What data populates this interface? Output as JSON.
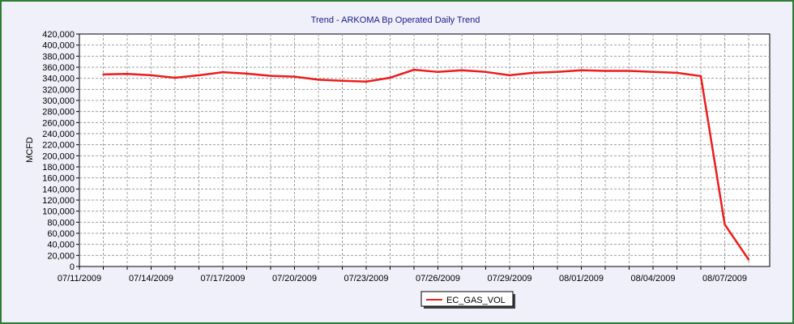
{
  "chart_data": {
    "type": "line",
    "title": "Trend - ARKOMA  Bp Operated Daily Trend",
    "xlabel": "",
    "ylabel": "MCFD",
    "ylim": [
      0,
      420000
    ],
    "ytick_step": 20000,
    "ytick_labels": [
      "0",
      "20,000",
      "40,000",
      "60,000",
      "80,000",
      "100,000",
      "120,000",
      "140,000",
      "160,000",
      "180,000",
      "200,000",
      "220,000",
      "240,000",
      "260,000",
      "280,000",
      "300,000",
      "320,000",
      "340,000",
      "360,000",
      "380,000",
      "400,000",
      "420,000"
    ],
    "xtick_labels": [
      "07/11/2009",
      "07/14/2009",
      "07/17/2009",
      "07/20/2009",
      "07/23/2009",
      "07/26/2009",
      "07/29/2009",
      "08/01/2009",
      "08/04/2009",
      "08/07/2009"
    ],
    "x": [
      "07/11/2009",
      "07/12/2009",
      "07/13/2009",
      "07/14/2009",
      "07/15/2009",
      "07/16/2009",
      "07/17/2009",
      "07/18/2009",
      "07/19/2009",
      "07/20/2009",
      "07/21/2009",
      "07/22/2009",
      "07/23/2009",
      "07/24/2009",
      "07/25/2009",
      "07/26/2009",
      "07/27/2009",
      "07/28/2009",
      "07/29/2009",
      "07/30/2009",
      "07/31/2009",
      "08/01/2009",
      "08/02/2009",
      "08/03/2009",
      "08/04/2009",
      "08/05/2009",
      "08/06/2009",
      "08/07/2009"
    ],
    "grid": true,
    "legend_position": "bottom-center",
    "series": [
      {
        "name": "EC_GAS_VOL",
        "color": "#ee1c1c",
        "values": [
          347000,
          348000,
          345500,
          341000,
          345500,
          351000,
          348500,
          344500,
          343000,
          337500,
          335500,
          334000,
          341000,
          355500,
          351500,
          354500,
          351500,
          345500,
          350000,
          351500,
          354500,
          353500,
          353500,
          351500,
          350000,
          344000,
          76000,
          12500
        ]
      }
    ]
  }
}
